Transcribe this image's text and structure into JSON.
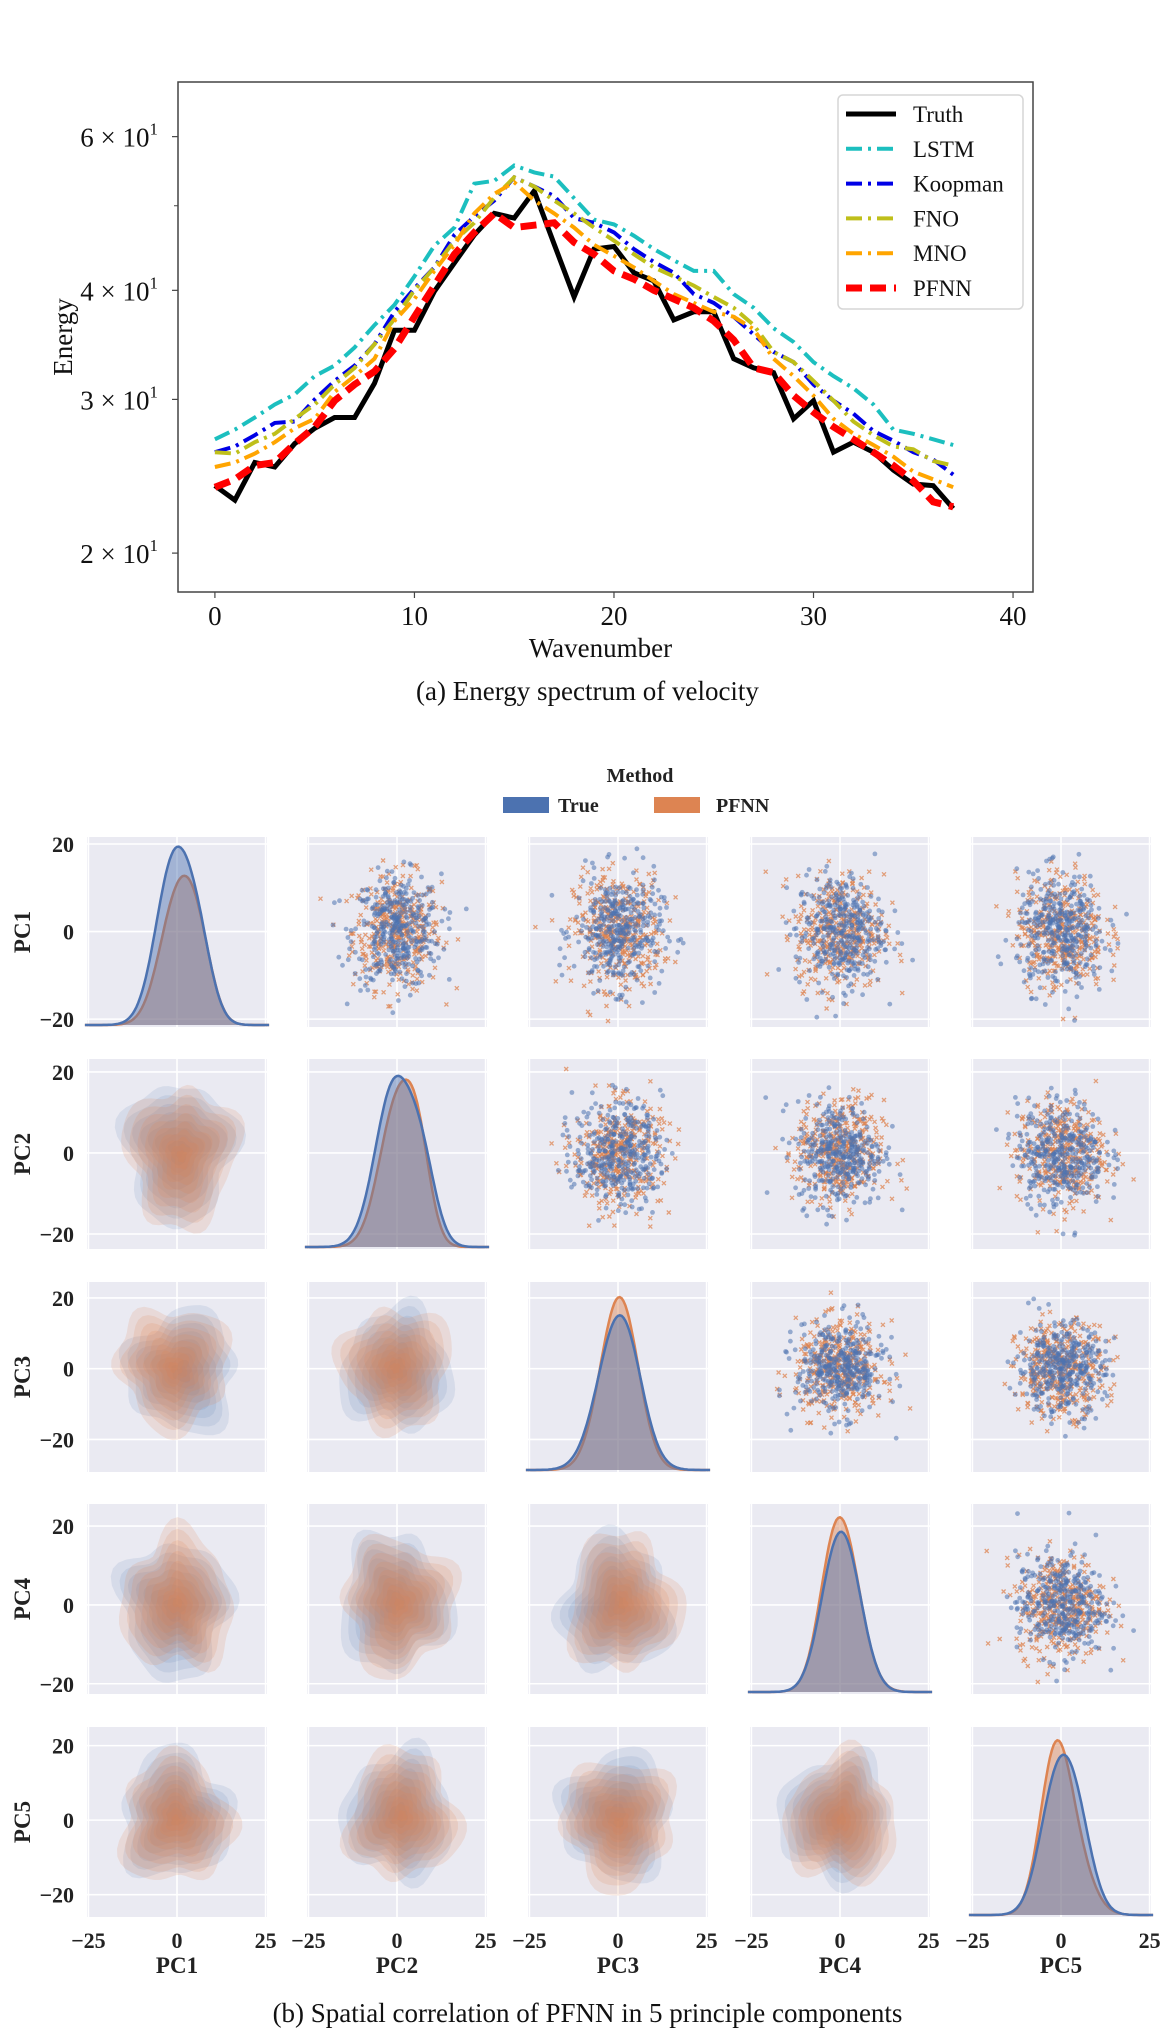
{
  "chart_data": [
    {
      "type": "line",
      "caption": "(a) Energy spectrum of velocity",
      "xlabel": "Wavenumber",
      "ylabel": "Energy",
      "yscale": "log",
      "xlim": [
        -1.85,
        41
      ],
      "ylim": [
        18.05,
        69.3
      ],
      "xticks": [
        0,
        10,
        20,
        30,
        40
      ],
      "xtick_labels": [
        "0",
        "10",
        "20",
        "30",
        "40"
      ],
      "yticks": [
        20,
        30,
        40,
        60
      ],
      "ytick_labels": [
        {
          "mant": "2 × 10",
          "exp": "1"
        },
        {
          "mant": "3 × 10",
          "exp": "1"
        },
        {
          "mant": "4 × 10",
          "exp": "1"
        },
        {
          "mant": "6 × 10",
          "exp": "1"
        }
      ],
      "grid": false,
      "legend_position": "top-right",
      "x": [
        0,
        1,
        2,
        3,
        4,
        5,
        6,
        7,
        8,
        9,
        10,
        11,
        12,
        13,
        14,
        15,
        16,
        17,
        18,
        19,
        20,
        21,
        22,
        23,
        24,
        25,
        26,
        27,
        28,
        29,
        30,
        31,
        32,
        33,
        34,
        35,
        36,
        37
      ],
      "series": [
        {
          "name": "Truth",
          "color": "#000000",
          "style": "solid",
          "values": [
            23.9,
            23.0,
            25.4,
            25.1,
            26.7,
            27.8,
            28.6,
            28.6,
            31.3,
            36.0,
            36.0,
            39.9,
            43.0,
            46.3,
            49.0,
            48.4,
            52.0,
            45.2,
            39.3,
            44.6,
            44.9,
            41.9,
            41.0,
            37.0,
            37.8,
            37.8,
            33.4,
            32.6,
            32.2,
            28.5,
            29.9,
            26.1,
            26.8,
            26.1,
            24.9,
            24.0,
            23.9,
            22.5
          ]
        },
        {
          "name": "LSTM",
          "color": "#1CBFBF",
          "style": "dashdot",
          "values": [
            27.0,
            27.7,
            28.6,
            29.6,
            30.4,
            31.9,
            32.8,
            34.4,
            36.5,
            38.5,
            41.5,
            45.0,
            47.2,
            53.0,
            53.4,
            55.6,
            54.6,
            54.0,
            51.0,
            48.2,
            47.6,
            46.2,
            44.6,
            43.3,
            42.1,
            42.1,
            39.6,
            38.2,
            36.2,
            34.9,
            33.1,
            31.9,
            30.9,
            29.6,
            27.7,
            27.4,
            27.0,
            26.6
          ]
        },
        {
          "name": "Koopman",
          "color": "#0000E6",
          "style": "dashdot",
          "values": [
            26.1,
            26.5,
            27.3,
            28.2,
            28.3,
            30.0,
            31.5,
            32.8,
            34.7,
            37.8,
            40.2,
            42.5,
            46.3,
            48.6,
            50.7,
            53.9,
            52.6,
            51.3,
            48.4,
            47.8,
            46.6,
            44.6,
            43.1,
            41.9,
            39.6,
            38.7,
            37.3,
            35.6,
            34.0,
            33.1,
            31.2,
            29.9,
            28.9,
            27.6,
            26.9,
            26.1,
            25.6,
            24.6
          ]
        },
        {
          "name": "FNO",
          "color": "#BFBF1A",
          "style": "dashdot",
          "values": [
            26.1,
            26.0,
            26.8,
            27.4,
            28.5,
            29.6,
            31.2,
            32.6,
            34.7,
            37.1,
            40.0,
            42.5,
            45.6,
            47.8,
            51.1,
            53.9,
            52.6,
            50.7,
            49.0,
            47.2,
            45.6,
            44.0,
            42.5,
            41.5,
            40.5,
            39.3,
            38.2,
            36.5,
            34.0,
            33.1,
            31.5,
            29.9,
            28.3,
            27.3,
            26.5,
            26.3,
            25.5,
            25.2
          ]
        },
        {
          "name": "MNO",
          "color": "#FFA500",
          "style": "dashdot",
          "values": [
            25.1,
            25.4,
            26.0,
            26.8,
            27.8,
            28.5,
            30.6,
            31.9,
            33.4,
            36.9,
            39.1,
            42.1,
            45.1,
            49.0,
            51.6,
            53.2,
            50.7,
            49.0,
            47.2,
            45.1,
            43.8,
            42.5,
            41.0,
            39.6,
            38.7,
            37.8,
            37.3,
            36.1,
            33.4,
            31.9,
            30.3,
            28.5,
            27.4,
            26.6,
            25.8,
            24.8,
            24.3,
            23.8
          ]
        },
        {
          "name": "PFNN",
          "color": "#FF0000",
          "style": "dashed",
          "values": [
            23.8,
            24.3,
            25.2,
            25.4,
            26.7,
            27.9,
            29.9,
            31.2,
            32.3,
            34.3,
            37.3,
            40.5,
            44.0,
            46.6,
            49.0,
            47.2,
            47.5,
            47.8,
            45.4,
            44.0,
            42.1,
            41.2,
            40.0,
            39.1,
            38.2,
            36.9,
            35.1,
            32.6,
            32.2,
            30.3,
            29.0,
            27.9,
            27.0,
            26.1,
            25.2,
            24.2,
            22.9,
            22.6
          ]
        }
      ]
    },
    {
      "type": "pairplot",
      "caption": "(b) Spatial correlation of PFNN in 5 principle components",
      "variables": [
        "PC1",
        "PC2",
        "PC3",
        "PC4",
        "PC5"
      ],
      "upper": "scatter",
      "lower": "kde-filled",
      "diagonal": "kde",
      "legend": {
        "title": "Method",
        "position": "top-center",
        "entries": [
          {
            "name": "True",
            "color": "#4C72B0",
            "marker": "circle"
          },
          {
            "name": "PFNN",
            "color": "#DD8452",
            "marker": "x"
          }
        ]
      },
      "xlim": [
        -25.4,
        25.4
      ],
      "xticks": [
        -25,
        0,
        25
      ],
      "xtick_labels": [
        "−25",
        "0",
        "25"
      ],
      "yticks": [
        20,
        0,
        -20
      ],
      "ytick_labels": [
        "20",
        "0",
        "−20"
      ],
      "row_ylims": [
        [
          -21.8,
          21.6
        ],
        [
          -23.7,
          23.2
        ],
        [
          -29.2,
          24.5
        ],
        [
          -22.6,
          25.6
        ],
        [
          -26,
          25
        ]
      ],
      "grid": true,
      "background": "#EAEAF2"
    }
  ]
}
